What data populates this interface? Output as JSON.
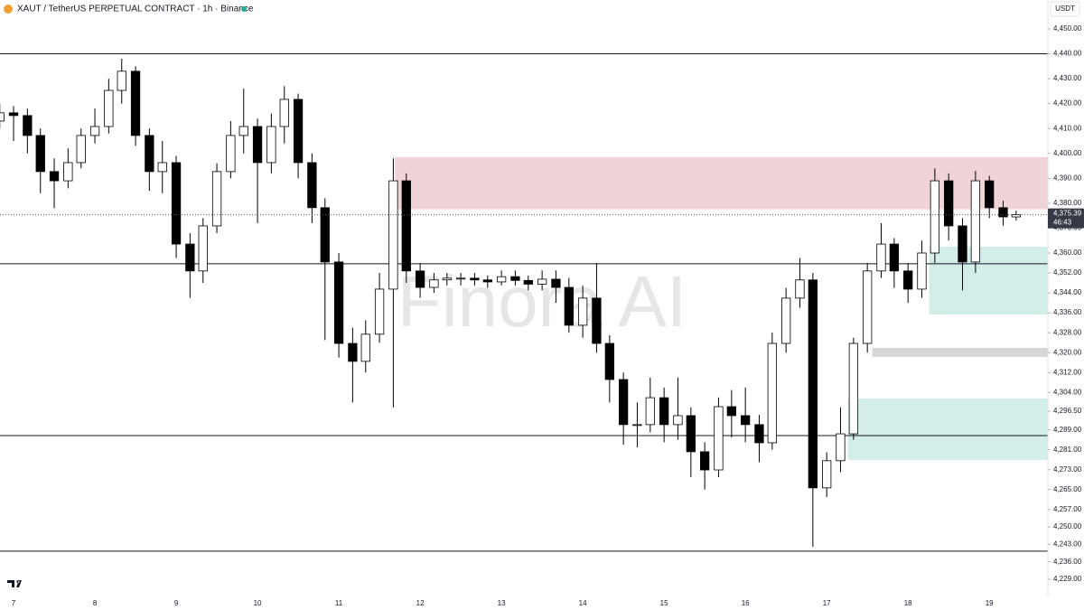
{
  "chart_data": {
    "type": "candlestick",
    "title": "XAUT / TetherUS PERPETUAL CONTRACT · 1h · Binance",
    "currency": "USDT",
    "watermark": "Finora AI",
    "x": [
      6.83,
      7,
      7.17,
      7.33,
      7.5,
      7.67,
      7.83,
      8,
      8.17,
      8.33,
      8.5,
      8.67,
      8.83,
      9,
      9.17,
      9.33,
      9.5,
      9.67,
      9.83,
      10,
      10.17,
      10.33,
      10.5,
      10.67,
      10.83,
      11,
      11.17,
      11.33,
      11.5,
      11.67,
      11.83,
      12,
      12.17,
      12.33,
      12.5,
      12.67,
      12.83,
      13,
      13.17,
      13.33,
      13.5,
      13.67,
      13.83,
      14,
      14.17,
      14.33,
      14.5,
      14.67,
      14.83,
      15,
      15.17,
      15.33,
      15.5,
      15.67,
      15.83,
      16,
      16.17,
      16.33,
      16.5,
      16.67,
      16.83,
      17,
      17.17,
      17.33,
      17.5,
      17.67,
      17.83,
      18,
      18.17,
      18.33,
      18.5,
      18.67,
      18.83,
      19,
      19.17,
      19.33
    ],
    "open": [
      4413,
      4416.3,
      4415.2,
      4407.2,
      4392.7,
      4389.0,
      4396.3,
      4407.2,
      4410.8,
      4425.3,
      4433.0,
      4407.2,
      4392.7,
      4396.3,
      4363.6,
      4352.8,
      4370.9,
      4392.7,
      4407.2,
      4410.8,
      4396.3,
      4410.8,
      4421.7,
      4396.3,
      4378.2,
      4356.4,
      4323.7,
      4316.5,
      4327.4,
      4345.5,
      4389.0,
      4352.8,
      4346.2,
      4349.2,
      4349.9,
      4349.9,
      4349.2,
      4348.4,
      4350.5,
      4349.0,
      4347.5,
      4349.5,
      4346.2,
      4331.0,
      4341.9,
      4323.7,
      4309.2,
      4291.1,
      4291.1,
      4301.9,
      4291.1,
      4294.7,
      4280.2,
      4272.9,
      4298.3,
      4294.7,
      4291.1,
      4283.8,
      4323.7,
      4341.9,
      4349.2,
      4265.7,
      4276.6,
      4287.4,
      4323.7,
      4352.8,
      4363.6,
      4352.8,
      4345.5,
      4360.0,
      4389.0,
      4370.9,
      4356.4,
      4389.0,
      4378.2,
      4374.5
    ],
    "high": [
      4420,
      4419,
      4418,
      4410,
      4398,
      4402,
      4410,
      4418,
      4430,
      4438,
      4435,
      4410,
      4405,
      4399,
      4368,
      4374,
      4396,
      4413,
      4426,
      4414,
      4416,
      4427,
      4424,
      4400,
      4382,
      4360,
      4330,
      4333,
      4352,
      4398,
      4392,
      4356,
      4352,
      4352,
      4352,
      4352,
      4351,
      4353,
      4353,
      4351,
      4353,
      4353,
      4350,
      4347,
      4356,
      4327,
      4312,
      4300,
      4310,
      4306,
      4310,
      4298,
      4284,
      4302,
      4305,
      4306,
      4295,
      4328,
      4346,
      4358,
      4352,
      4280,
      4298,
      4326,
      4356,
      4372,
      4366,
      4356,
      4365,
      4394,
      4392,
      4374,
      4393,
      4391,
      4381,
      4377
    ],
    "low": [
      4410,
      4405,
      4400,
      4384,
      4378,
      4386,
      4394,
      4404,
      4408,
      4420,
      4403,
      4385,
      4384,
      4358,
      4342,
      4348,
      4368,
      4390,
      4400,
      4372,
      4392,
      4404,
      4390,
      4372,
      4325,
      4318,
      4300,
      4312,
      4324,
      4298,
      4348,
      4342,
      4344,
      4347,
      4347,
      4347,
      4346,
      4347,
      4347,
      4345,
      4345,
      4340,
      4328,
      4326,
      4320,
      4300,
      4283,
      4282,
      4288,
      4284,
      4285,
      4270,
      4265,
      4270,
      4286,
      4284,
      4276,
      4281,
      4320,
      4338,
      4242,
      4262,
      4272,
      4285,
      4320,
      4350,
      4346,
      4340,
      4342,
      4356,
      4365,
      4345,
      4352,
      4374,
      4371,
      4373
    ],
    "close": [
      4416.3,
      4415.2,
      4407.2,
      4392.7,
      4389.0,
      4396.3,
      4407.2,
      4410.8,
      4425.3,
      4433.0,
      4407.2,
      4392.7,
      4396.3,
      4363.6,
      4352.8,
      4370.9,
      4392.7,
      4407.2,
      4410.8,
      4396.3,
      4410.8,
      4421.7,
      4396.3,
      4378.2,
      4356.4,
      4323.7,
      4316.5,
      4327.4,
      4345.5,
      4389.0,
      4352.8,
      4346.2,
      4349.2,
      4349.9,
      4349.9,
      4349.2,
      4348.4,
      4350.5,
      4349.0,
      4347.5,
      4349.5,
      4346.2,
      4331.0,
      4341.9,
      4323.7,
      4309.2,
      4291.1,
      4291.1,
      4301.9,
      4291.1,
      4294.7,
      4280.2,
      4272.9,
      4298.3,
      4294.7,
      4291.1,
      4283.8,
      4323.7,
      4341.9,
      4349.2,
      4265.7,
      4276.6,
      4287.4,
      4323.7,
      4352.8,
      4363.6,
      4352.8,
      4345.5,
      4360.0,
      4389.0,
      4370.9,
      4356.4,
      4389.0,
      4378.2,
      4374.5,
      4375.39
    ],
    "up_color": "#ffffff",
    "down_color": "#000000",
    "wick_color": "#000000",
    "last_price": {
      "value": 4375.39,
      "label": "4,375.39"
    },
    "countdown": "46:43",
    "levels": [
      4440,
      4355.7,
      4286.7,
      4240.3
    ],
    "zones": [
      {
        "from": 11.69,
        "top": 4398.5,
        "bottom": 4377.6,
        "color": "#f0d3d6"
      },
      {
        "from": 18.26,
        "top": 4362.6,
        "bottom": 4335.3,
        "color": "#d3ede8"
      },
      {
        "from": 17.56,
        "top": 4321.9,
        "bottom": 4318.3,
        "color": "#d7d7da"
      },
      {
        "from": 17.26,
        "top": 4301.6,
        "bottom": 4276.9,
        "color": "#d3ede8"
      }
    ],
    "xlim": [
      6.833,
      19.72
    ],
    "ylim": [
      4222.1,
      4461.6
    ],
    "xticks": [
      7,
      8,
      9,
      10,
      11,
      12,
      13,
      14,
      15,
      16,
      17,
      18,
      19
    ],
    "yticks": [
      {
        "value": 4450,
        "label": "4,450.00"
      },
      {
        "value": 4440,
        "label": "4,440.00"
      },
      {
        "value": 4430,
        "label": "4,430.00"
      },
      {
        "value": 4420,
        "label": "4,420.00"
      },
      {
        "value": 4410,
        "label": "4,410.00"
      },
      {
        "value": 4400,
        "label": "4,400.00"
      },
      {
        "value": 4390,
        "label": "4,390.00"
      },
      {
        "value": 4380,
        "label": "4,380.00"
      },
      {
        "value": 4370,
        "label": "4,370.00"
      },
      {
        "value": 4360,
        "label": "4,360.00"
      },
      {
        "value": 4352,
        "label": "4,352.00"
      },
      {
        "value": 4344,
        "label": "4,344.00"
      },
      {
        "value": 4336,
        "label": "4,336.00"
      },
      {
        "value": 4328,
        "label": "4,328.00"
      },
      {
        "value": 4320,
        "label": "4,320.00"
      },
      {
        "value": 4312,
        "label": "4,312.00"
      },
      {
        "value": 4304,
        "label": "4,304.00"
      },
      {
        "value": 4296.5,
        "label": "4,296.50"
      },
      {
        "value": 4289,
        "label": "4,289.00"
      },
      {
        "value": 4281,
        "label": "4,281.00"
      },
      {
        "value": 4273,
        "label": "4,273.00"
      },
      {
        "value": 4265,
        "label": "4,265.00"
      },
      {
        "value": 4257,
        "label": "4,257.00"
      },
      {
        "value": 4250,
        "label": "4,250.00"
      },
      {
        "value": 4243,
        "label": "4,243.00"
      },
      {
        "value": 4236,
        "label": "4,236.00"
      },
      {
        "value": 4229,
        "label": "4,229.00"
      }
    ]
  }
}
